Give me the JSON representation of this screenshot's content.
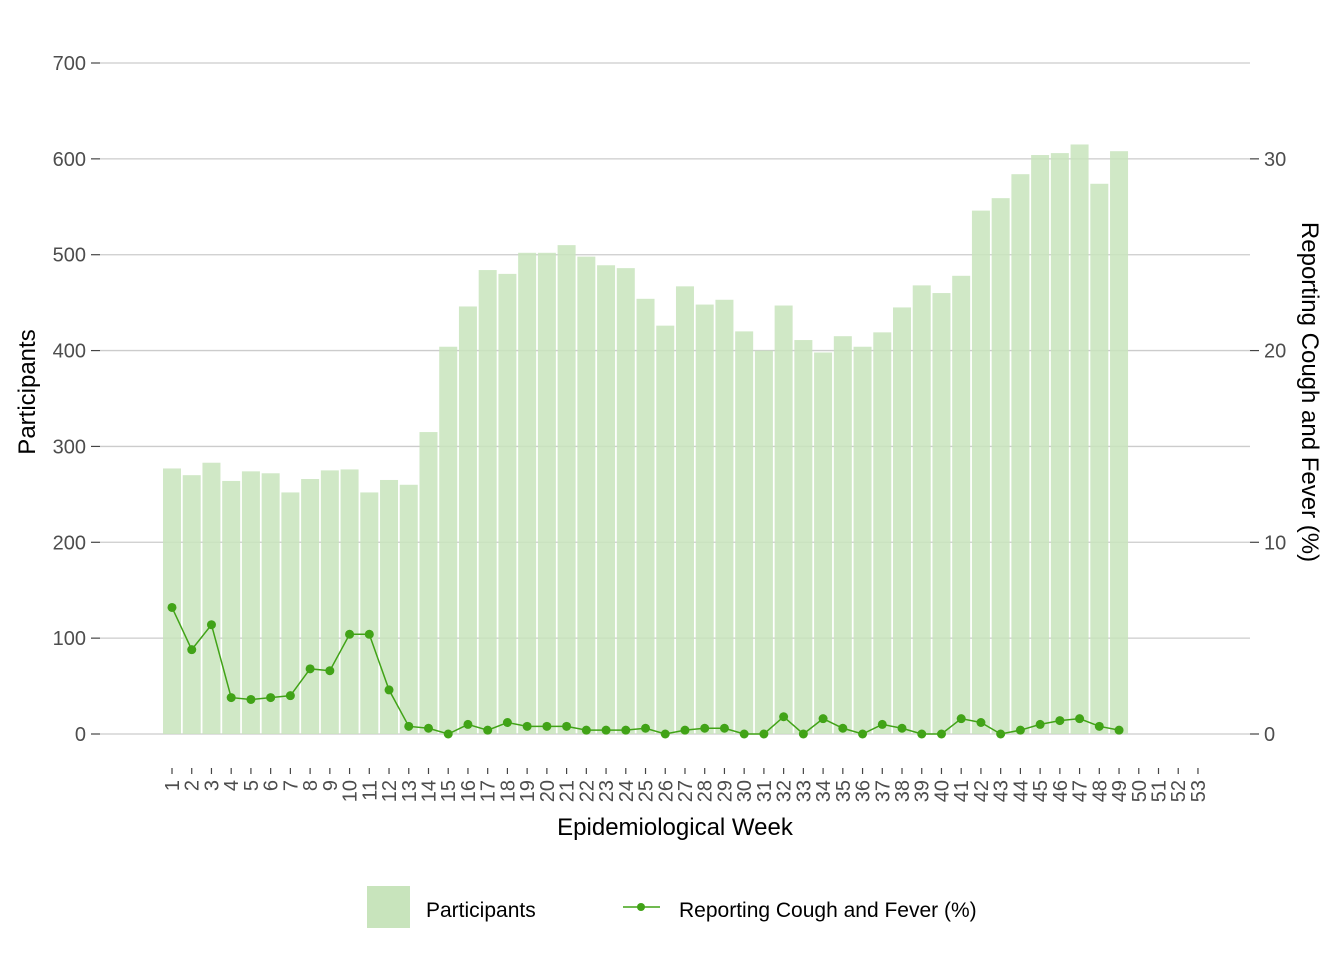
{
  "chart_data": {
    "type": "bar+line",
    "title": "",
    "xlabel": "Epidemiological Week",
    "ylabel": "Participants",
    "ylabel_right": "Reporting Cough and Fever (%)",
    "ylim": [
      0,
      700
    ],
    "ylim_right": [
      0,
      35
    ],
    "yticks": [
      0,
      100,
      200,
      300,
      400,
      500,
      600,
      700
    ],
    "yticks_right": [
      0,
      10,
      20,
      30
    ],
    "categories": [
      "1",
      "2",
      "3",
      "4",
      "5",
      "6",
      "7",
      "8",
      "9",
      "10",
      "11",
      "12",
      "13",
      "14",
      "15",
      "16",
      "17",
      "18",
      "19",
      "20",
      "21",
      "22",
      "23",
      "24",
      "25",
      "26",
      "27",
      "28",
      "29",
      "30",
      "31",
      "32",
      "33",
      "34",
      "35",
      "36",
      "37",
      "38",
      "39",
      "40",
      "41",
      "42",
      "43",
      "44",
      "45",
      "46",
      "47",
      "48",
      "49",
      "50",
      "51",
      "52",
      "53"
    ],
    "grid": true,
    "legend_position": "bottom",
    "series": [
      {
        "name": "Participants",
        "type": "bar",
        "axis": "left",
        "color": "#c8e4bc",
        "values": [
          277,
          270,
          283,
          264,
          274,
          272,
          252,
          266,
          275,
          276,
          252,
          265,
          260,
          315,
          404,
          446,
          484,
          480,
          502,
          502,
          510,
          498,
          489,
          486,
          454,
          426,
          467,
          448,
          453,
          420,
          400,
          447,
          411,
          398,
          415,
          404,
          419,
          445,
          468,
          460,
          478,
          546,
          559,
          584,
          604,
          606,
          615,
          574,
          608,
          null,
          null,
          null,
          null
        ]
      },
      {
        "name": "Reporting Cough and Fever (%)",
        "type": "line",
        "axis": "right",
        "color": "#41a317",
        "values": [
          6.6,
          4.4,
          5.7,
          1.9,
          1.8,
          1.9,
          2.0,
          3.4,
          3.3,
          5.2,
          5.2,
          2.3,
          0.4,
          0.3,
          0.0,
          0.5,
          0.2,
          0.6,
          0.4,
          0.4,
          0.4,
          0.2,
          0.2,
          0.2,
          0.3,
          0.0,
          0.2,
          0.3,
          0.3,
          0.0,
          0.0,
          0.9,
          0.0,
          0.8,
          0.3,
          0.0,
          0.5,
          0.3,
          0.0,
          0.0,
          0.8,
          0.6,
          0.0,
          0.2,
          0.5,
          0.7,
          0.8,
          0.4,
          0.2,
          null,
          null,
          null,
          null
        ]
      }
    ]
  }
}
